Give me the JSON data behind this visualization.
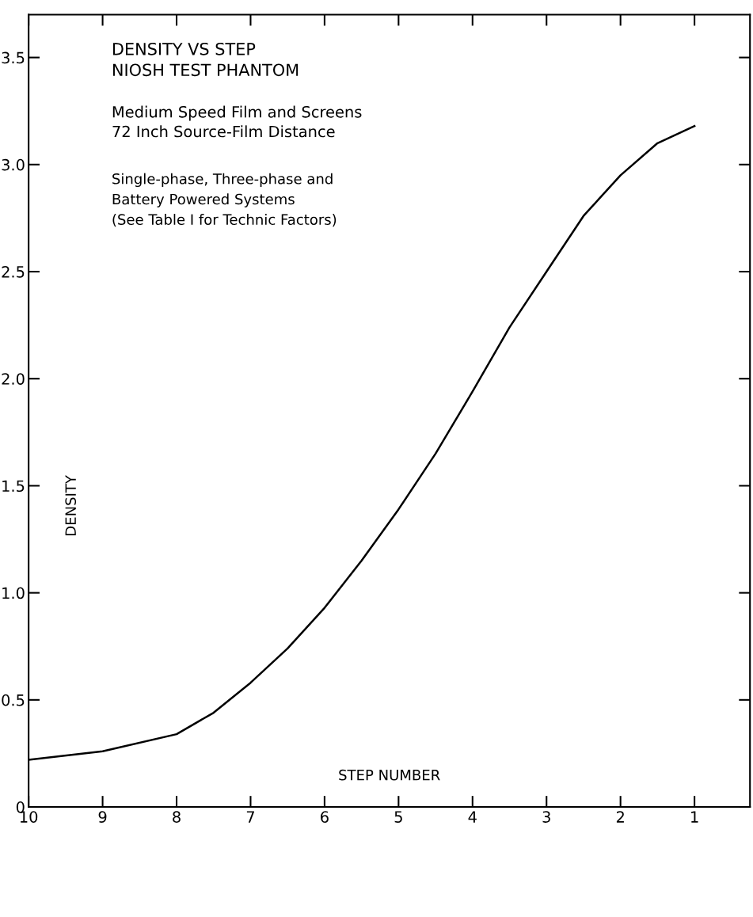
{
  "chart_data": {
    "type": "line",
    "title": "DENSITY VS STEP\nNIOSH TEST PHANTOM",
    "subtitle": "Medium Speed Film and Screens\n72 Inch Source-Film Distance",
    "annotations": [
      "Single-phase, Three-phase and\nBattery Powered Systems\n(See Table I for Technic Factors)"
    ],
    "xlabel": "STEP NUMBER",
    "ylabel": "DENSITY",
    "x": [
      10,
      9,
      8,
      7.5,
      7,
      6.5,
      6,
      5.5,
      5,
      4.5,
      4,
      3.5,
      3,
      2.5,
      2,
      1.5,
      1
    ],
    "series": [
      {
        "color": "#000000",
        "values": [
          0.22,
          0.26,
          0.34,
          0.44,
          0.58,
          0.74,
          0.93,
          1.15,
          1.39,
          1.65,
          1.94,
          2.24,
          2.5,
          2.76,
          2.95,
          3.1,
          3.18
        ]
      }
    ],
    "xlim": [
      10,
      0.25
    ],
    "xticks": [
      10,
      9,
      8,
      7,
      6,
      5,
      4,
      3,
      2,
      1
    ],
    "ylim": [
      0,
      3.7
    ],
    "yticks": [
      0,
      0.5,
      {
        "value": 1,
        "label": "1.0"
      },
      1.5,
      {
        "value": 2,
        "label": "2.0"
      },
      2.5,
      {
        "value": 3,
        "label": "3.0"
      },
      3.5
    ],
    "grid": false,
    "legend": false,
    "marker": "none",
    "line_style": "solid"
  }
}
